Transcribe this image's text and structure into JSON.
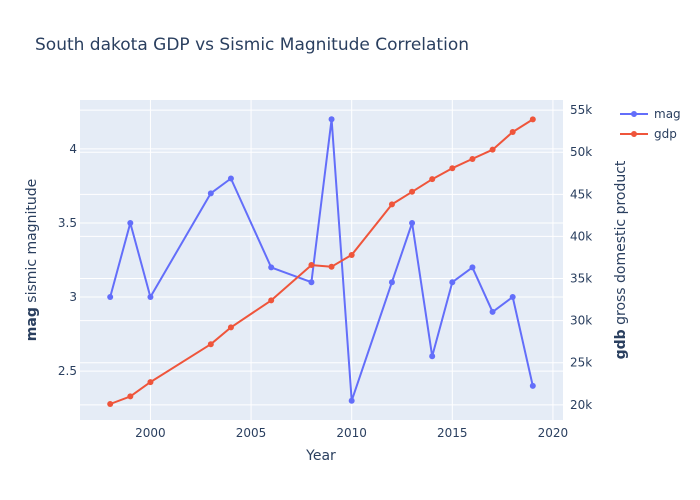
{
  "chart_data": {
    "type": "line",
    "title": "South dakota GDP vs Sismic Magnitude Correlation",
    "xlabel": "Year",
    "y_left_label_bold": "mag",
    "y_left_label": " sismic magnitude",
    "y_right_label_bold": "gdb",
    "y_right_label": " gross domestic product",
    "xlim": [
      1996.5,
      2020.5
    ],
    "ylim_left": [
      2.17,
      4.33
    ],
    "ylim_right": [
      18200,
      56200
    ],
    "x_ticks": [
      2000,
      2005,
      2010,
      2015,
      2020
    ],
    "x_tick_labels": [
      "2000",
      "2005",
      "2010",
      "2015",
      "2020"
    ],
    "y_left_ticks": [
      2.5,
      3,
      3.5,
      4
    ],
    "y_left_tick_labels": [
      "2.5",
      "3",
      "3.5",
      "4"
    ],
    "y_right_ticks": [
      20000,
      25000,
      30000,
      35000,
      40000,
      45000,
      50000,
      55000
    ],
    "y_right_tick_labels": [
      "20k",
      "25k",
      "30k",
      "35k",
      "40k",
      "45k",
      "50k",
      "55k"
    ],
    "grid": true,
    "legend_position": "top-right",
    "series": [
      {
        "name": "mag",
        "axis": "left",
        "color": "#636efa",
        "points": [
          [
            1998,
            3.0
          ],
          [
            1999,
            3.5
          ],
          [
            2000,
            3.0
          ],
          [
            2003,
            3.7
          ],
          [
            2004,
            3.8
          ],
          [
            2006,
            3.2
          ],
          [
            2008,
            3.1
          ],
          [
            2009,
            4.2
          ],
          [
            2010,
            2.3
          ],
          [
            2012,
            3.1
          ],
          [
            2013,
            3.5
          ],
          [
            2014,
            2.6
          ],
          [
            2015,
            3.1
          ],
          [
            2016,
            3.2
          ],
          [
            2017,
            2.9
          ],
          [
            2018,
            3.0
          ],
          [
            2019,
            2.4
          ]
        ]
      },
      {
        "name": "gdp",
        "axis": "right",
        "color": "#ef553b",
        "points": [
          [
            1998,
            20100
          ],
          [
            1999,
            21000
          ],
          [
            2000,
            22700
          ],
          [
            2003,
            27200
          ],
          [
            2004,
            29200
          ],
          [
            2006,
            32400
          ],
          [
            2008,
            36600
          ],
          [
            2009,
            36400
          ],
          [
            2010,
            37800
          ],
          [
            2012,
            43800
          ],
          [
            2013,
            45300
          ],
          [
            2014,
            46800
          ],
          [
            2015,
            48100
          ],
          [
            2016,
            49200
          ],
          [
            2017,
            50300
          ],
          [
            2018,
            52400
          ],
          [
            2019,
            53900
          ]
        ]
      }
    ]
  }
}
